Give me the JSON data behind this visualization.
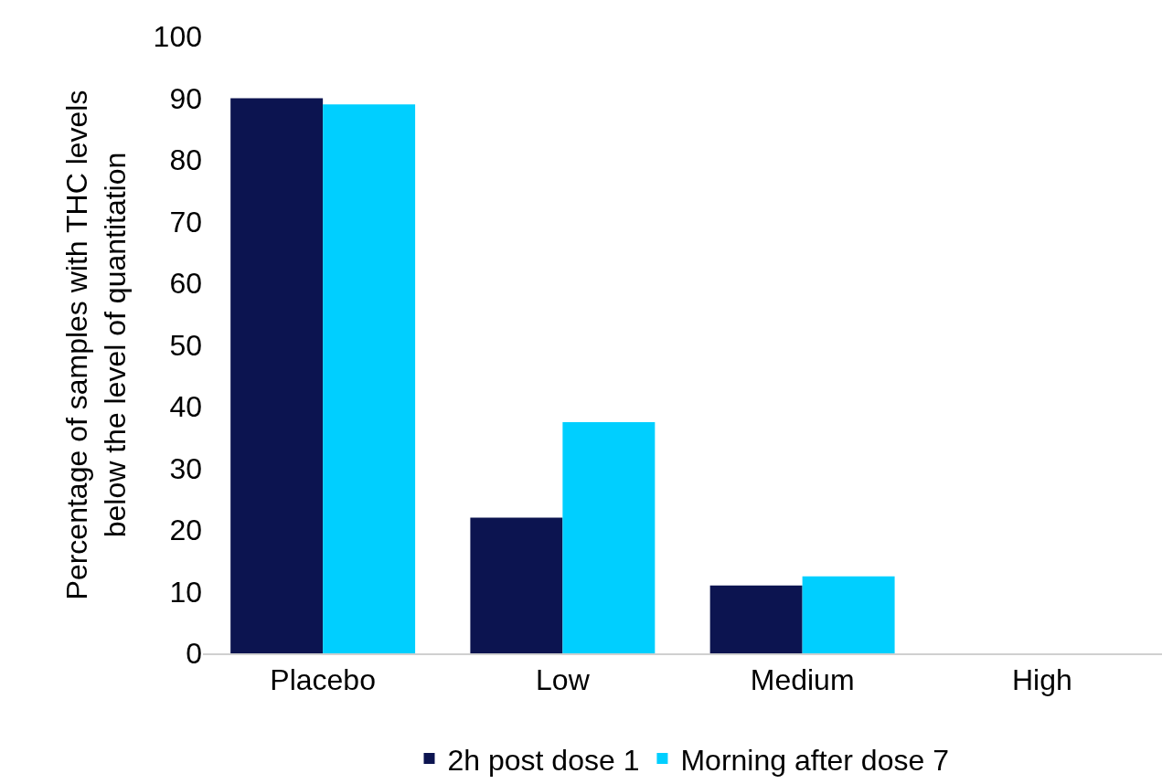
{
  "chart_data": {
    "type": "bar",
    "ylabel": "Percentage of samples with THC levels below the level of quantitation",
    "categories": [
      "Placebo",
      "Low",
      "Medium",
      "High"
    ],
    "series": [
      {
        "name": "2h post dose 1",
        "color": "#0c1450",
        "values": [
          90,
          22,
          11,
          0
        ]
      },
      {
        "name": "Morning after dose 7",
        "color": "#00cfff",
        "values": [
          89,
          37.5,
          12.5,
          0
        ]
      }
    ],
    "ylim": [
      0,
      100
    ],
    "yticks": [
      0,
      10,
      20,
      30,
      40,
      50,
      60,
      70,
      80,
      90,
      100
    ],
    "legend": "bottom"
  }
}
